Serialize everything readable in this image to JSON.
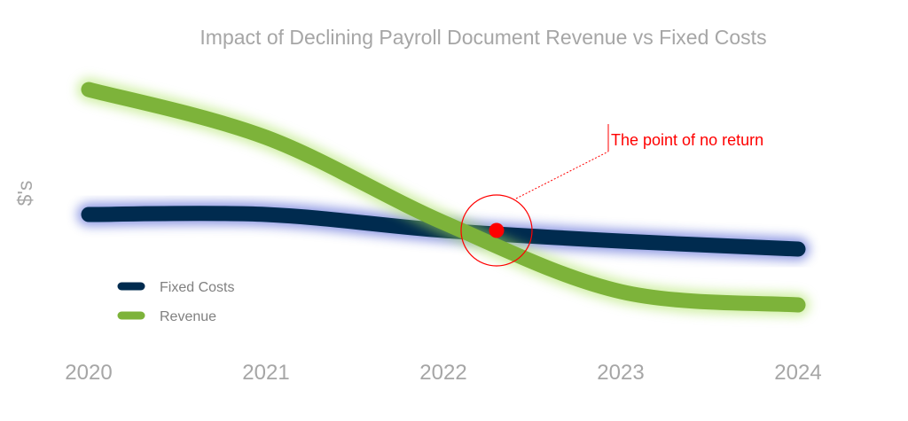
{
  "chart_data": {
    "type": "line",
    "title": "Impact of Declining Payroll Document Revenue vs Fixed Costs",
    "xlabel": "",
    "ylabel": "$'s",
    "categories": [
      "2020",
      "2021",
      "2022",
      "2023",
      "2024"
    ],
    "x": [
      2020,
      2021,
      2022,
      2023,
      2024
    ],
    "xlim": [
      2020,
      2024
    ],
    "ylim": [
      0,
      10
    ],
    "grid": false,
    "y_ticks_shown": false,
    "legend": {
      "placement": "bottom-left",
      "entries": [
        "Fixed Costs",
        "Revenue"
      ]
    },
    "series": [
      {
        "name": "Fixed Costs",
        "color": "#002b4f",
        "glow": "#3344cc",
        "values": [
          4.6,
          4.6,
          4.0,
          3.6,
          3.3
        ]
      },
      {
        "name": "Revenue",
        "color": "#7db33a",
        "glow": "#a8e25a",
        "values": [
          9.3,
          7.5,
          4.3,
          1.7,
          1.2
        ]
      }
    ],
    "annotation": {
      "text": "The point of no return",
      "x": 2022.3,
      "y": 4.0,
      "color": "#ff0000"
    }
  }
}
